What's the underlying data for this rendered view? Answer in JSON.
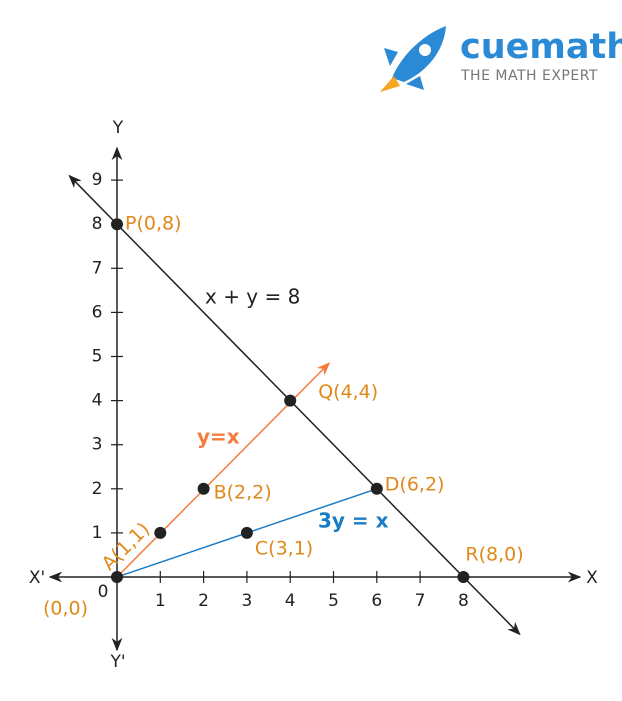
{
  "logo": {
    "brand": "cuemath",
    "tagline": "THE MATH EXPERT"
  },
  "axes": {
    "x_label": "X",
    "x_neg_label": "X'",
    "y_label": "Y",
    "y_neg_label": "Y'",
    "origin_label": "0",
    "xticks": [
      1,
      2,
      3,
      4,
      5,
      6,
      7,
      8
    ],
    "yticks": [
      1,
      2,
      3,
      4,
      5,
      6,
      7,
      8,
      9
    ]
  },
  "lines": [
    {
      "label": "x + y = 8",
      "color": "#222222"
    },
    {
      "label": "y=x",
      "color": "#f47c3c"
    },
    {
      "label": "3y = x",
      "color": "#1a7cc4"
    }
  ],
  "points": [
    {
      "label": "P(0,8)",
      "x": 0,
      "y": 8
    },
    {
      "label": "Q(4,4)",
      "x": 4,
      "y": 4
    },
    {
      "label": "D(6,2)",
      "x": 6,
      "y": 2
    },
    {
      "label": "R(8,0)",
      "x": 8,
      "y": 0
    },
    {
      "label": "B(2,2)",
      "x": 2,
      "y": 2
    },
    {
      "label": "A(1,1)",
      "x": 1,
      "y": 1
    },
    {
      "label": "C(3,1)",
      "x": 3,
      "y": 1
    },
    {
      "label": "(0,0)",
      "x": 0,
      "y": 0
    }
  ]
}
